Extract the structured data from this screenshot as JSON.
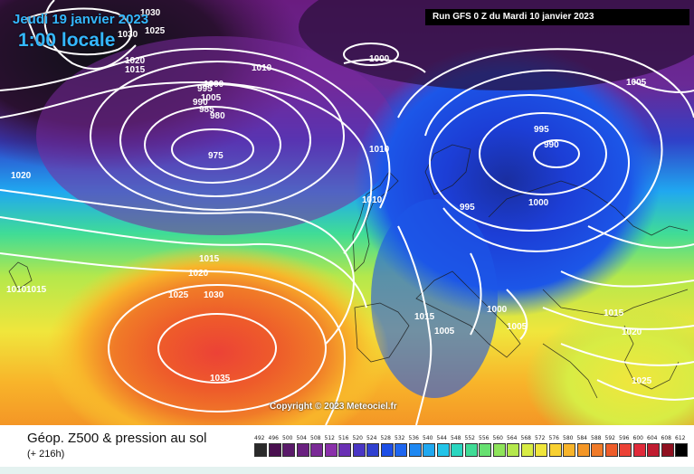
{
  "header": {
    "date_label": "Jeudi 19 janvier 2023",
    "time_label": "1:00 locale",
    "run_label": "Run GFS 0 Z du Mardi 10 janvier 2023"
  },
  "copyright": "Copyright © 2023 Meteociel.fr",
  "footer": {
    "title": "Géop. Z500 & pression au sol",
    "subtitle": "(+ 216h)"
  },
  "legend": {
    "values": [
      "492",
      "496",
      "500",
      "504",
      "508",
      "512",
      "516",
      "520",
      "524",
      "528",
      "532",
      "536",
      "540",
      "544",
      "548",
      "552",
      "556",
      "560",
      "564",
      "568",
      "572",
      "576",
      "580",
      "584",
      "588",
      "592",
      "596",
      "600",
      "604",
      "608",
      "612"
    ],
    "colors": [
      "#2a2a2a",
      "#4a1050",
      "#5a1a6a",
      "#6a2080",
      "#7a2a96",
      "#8a30aa",
      "#6a30b4",
      "#4a36c4",
      "#3040d0",
      "#1c4ee6",
      "#1e66f0",
      "#1e88f2",
      "#20a8f0",
      "#22c4e8",
      "#2ad6c0",
      "#40dc96",
      "#66e070",
      "#8ee45a",
      "#b4e84c",
      "#d8ec44",
      "#f0e63c",
      "#f8d030",
      "#f8b42a",
      "#f49626",
      "#f07a28",
      "#ee5c2a",
      "#ec4236",
      "#e02a3a",
      "#c01c30",
      "#901020",
      "#000000"
    ]
  },
  "map": {
    "isobar_labels": [
      "1030",
      "1030",
      "1025",
      "1015",
      "1020",
      "1010",
      "995",
      "1000",
      "1005",
      "1000",
      "990",
      "985",
      "980",
      "975",
      "995",
      "990",
      "1000",
      "995",
      "1005",
      "1020",
      "1010",
      "1015",
      "1020",
      "1025",
      "1030",
      "1015",
      "1010",
      "1035",
      "1000",
      "1005",
      "1005",
      "1015",
      "1020",
      "1025",
      "1015",
      "1010"
    ]
  }
}
